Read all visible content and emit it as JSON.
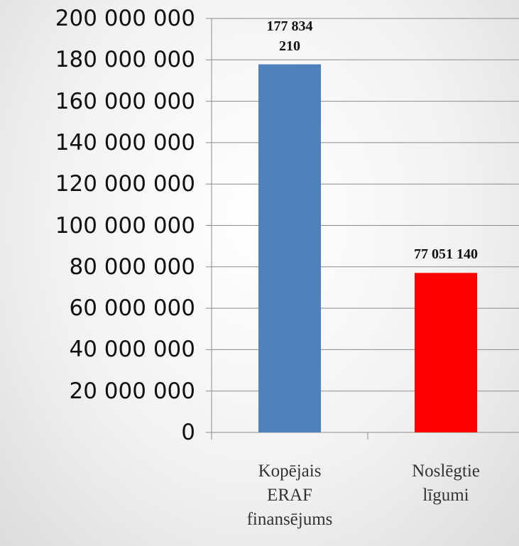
{
  "chart_data": {
    "type": "bar",
    "categories": [
      "Kopējais ERAF finansējums",
      "Noslēgtie līgumi"
    ],
    "values": [
      177834210,
      77051140
    ],
    "value_labels": [
      "177 834 210",
      "77 051 140"
    ],
    "colors": [
      "#4f81bd",
      "#ff0000"
    ],
    "ylim": [
      0,
      200000000
    ],
    "yticks": [
      {
        "value": 0,
        "label": "0"
      },
      {
        "value": 20000000,
        "label": "20 000 000"
      },
      {
        "value": 40000000,
        "label": "40 000 000"
      },
      {
        "value": 60000000,
        "label": "60 000 000"
      },
      {
        "value": 80000000,
        "label": "80 000 000"
      },
      {
        "value": 100000000,
        "label": "100 000 000"
      },
      {
        "value": 120000000,
        "label": "120 000 000"
      },
      {
        "value": 140000000,
        "label": "140 000 000"
      },
      {
        "value": 160000000,
        "label": "160 000 000"
      },
      {
        "value": 180000000,
        "label": "180 000 000"
      },
      {
        "value": 200000000,
        "label": "200 000 000"
      }
    ],
    "grid": true
  }
}
